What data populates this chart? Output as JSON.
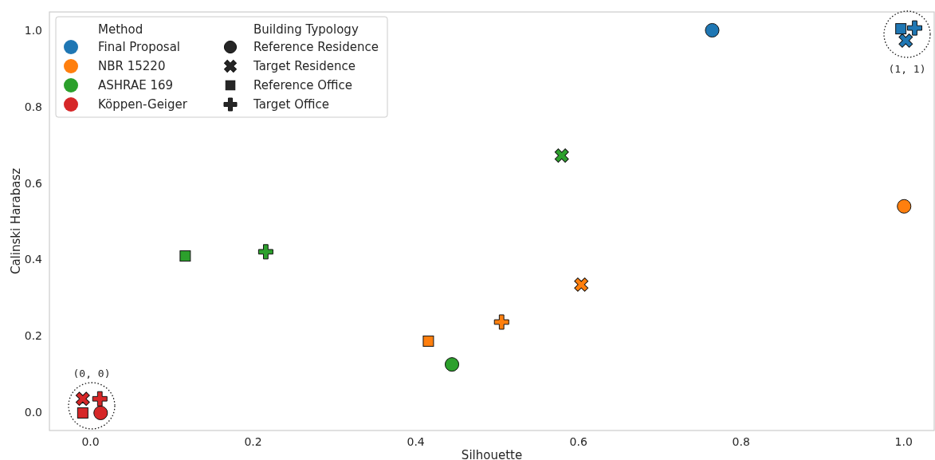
{
  "chart_data": {
    "type": "scatter",
    "xlabel": "Silhouette",
    "ylabel": "Calinski Harabasz",
    "xlim": [
      -0.05,
      1.038
    ],
    "ylim": [
      -0.048,
      1.048
    ],
    "xticks": [
      {
        "value": 0,
        "label": "0.0"
      },
      {
        "value": 0.2,
        "label": "0.2"
      },
      {
        "value": 0.4,
        "label": "0.4"
      },
      {
        "value": 0.6,
        "label": "0.6"
      },
      {
        "value": 0.8,
        "label": "0.8"
      },
      {
        "value": 1,
        "label": "1.0"
      }
    ],
    "yticks": [
      {
        "value": 0,
        "label": "0.0"
      },
      {
        "value": 0.2,
        "label": "0.2"
      },
      {
        "value": 0.4,
        "label": "0.4"
      },
      {
        "value": 0.6,
        "label": "0.6"
      },
      {
        "value": 0.8,
        "label": "0.8"
      },
      {
        "value": 1,
        "label": "1.0"
      }
    ],
    "grid": false,
    "legend": "top left",
    "legend_title": "Method",
    "series": [
      {
        "name": "Final Proposal",
        "color": "#1f77b4",
        "marker": "circle",
        "x": [
          0.765
        ],
        "values": [
          1.0
        ]
      },
      {
        "color": "#1f77b4",
        "marker": "cross",
        "x": [
          1.003
        ],
        "values": [
          0.973
        ]
      },
      {
        "color": "#1f77b4",
        "marker": "square",
        "x": [
          0.997
        ],
        "values": [
          1.004
        ]
      },
      {
        "color": "#1f77b4",
        "marker": "plus",
        "x": [
          1.014
        ],
        "values": [
          1.006
        ]
      },
      {
        "name": "NBR 15220",
        "color": "#ff7f0e",
        "marker": "circle",
        "x": [
          1.001
        ],
        "values": [
          0.539
        ]
      },
      {
        "color": "#ff7f0e",
        "marker": "cross",
        "x": [
          0.604
        ],
        "values": [
          0.334
        ]
      },
      {
        "color": "#ff7f0e",
        "marker": "square",
        "x": [
          0.416
        ],
        "values": [
          0.186
        ]
      },
      {
        "color": "#ff7f0e",
        "marker": "plus",
        "x": [
          0.506
        ],
        "values": [
          0.236
        ]
      },
      {
        "name": "ASHRAE 169",
        "color": "#2ca02c",
        "marker": "circle",
        "x": [
          0.445
        ],
        "values": [
          0.125
        ]
      },
      {
        "color": "#2ca02c",
        "marker": "cross",
        "x": [
          0.58
        ],
        "values": [
          0.672
        ]
      },
      {
        "color": "#2ca02c",
        "marker": "square",
        "x": [
          0.117
        ],
        "values": [
          0.409
        ]
      },
      {
        "color": "#2ca02c",
        "marker": "plus",
        "x": [
          0.216
        ],
        "values": [
          0.42
        ]
      },
      {
        "name": "Köppen-Geiger",
        "color": "#d62728",
        "marker": "circle",
        "x": [
          0.013
        ],
        "values": [
          -0.002
        ]
      },
      {
        "color": "#d62728",
        "marker": "cross",
        "x": [
          -0.009
        ],
        "values": [
          0.035
        ]
      },
      {
        "color": "#d62728",
        "marker": "square",
        "x": [
          -0.009
        ],
        "values": [
          -0.002
        ]
      },
      {
        "color": "#d62728",
        "marker": "plus",
        "x": [
          0.012
        ],
        "values": [
          0.035
        ]
      }
    ],
    "annotations": [
      "(0, 0)",
      "(1, 1)",
      "Building Typology",
      "Reference Residence",
      "Target Residence",
      "Reference Office",
      "Target Office"
    ]
  }
}
